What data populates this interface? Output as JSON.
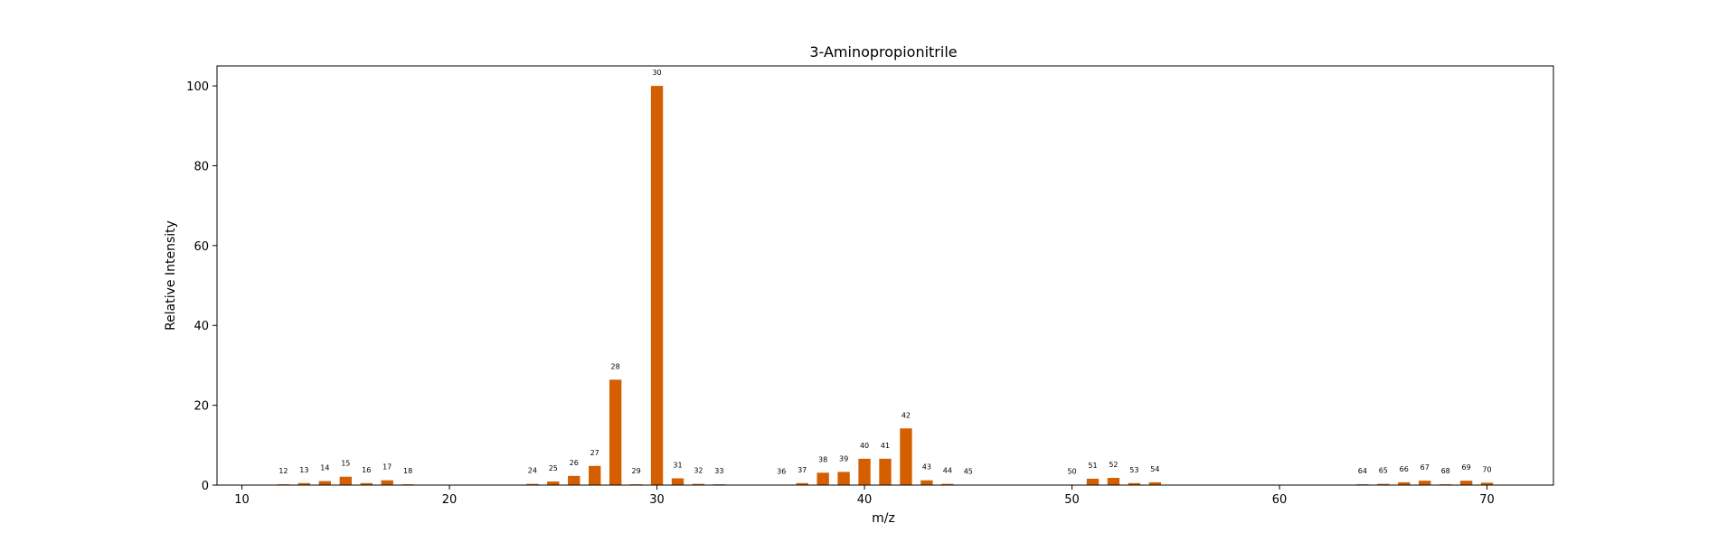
{
  "chart_data": {
    "type": "bar",
    "title": "3-Aminopropionitrile",
    "xlabel": "m/z",
    "ylabel": "Relative Intensity",
    "xlim": [
      8.8,
      73.2
    ],
    "ylim": [
      0,
      105
    ],
    "xticks": [
      10,
      20,
      30,
      40,
      50,
      60,
      70
    ],
    "yticks": [
      0,
      20,
      40,
      60,
      80,
      100
    ],
    "grid": false,
    "bar_color": "#d45f00",
    "bar_width": 0.6,
    "series": [
      {
        "x": [
          12,
          13,
          14,
          15,
          16,
          17,
          18,
          24,
          25,
          26,
          27,
          28,
          29,
          30,
          31,
          32,
          33,
          36,
          37,
          38,
          39,
          40,
          41,
          42,
          43,
          44,
          45,
          50,
          51,
          52,
          53,
          54,
          64,
          65,
          66,
          67,
          68,
          69,
          70
        ],
        "values": [
          0.2,
          0.5,
          1.0,
          2.1,
          0.5,
          1.2,
          0.2,
          0.3,
          0.9,
          2.3,
          4.8,
          26.4,
          0.2,
          100.0,
          1.7,
          0.3,
          0.2,
          0.1,
          0.5,
          3.1,
          3.3,
          6.6,
          6.6,
          14.2,
          1.2,
          0.3,
          0.1,
          0.1,
          1.6,
          1.8,
          0.5,
          0.7,
          0.2,
          0.3,
          0.7,
          1.1,
          0.2,
          1.1,
          0.6
        ]
      }
    ]
  }
}
